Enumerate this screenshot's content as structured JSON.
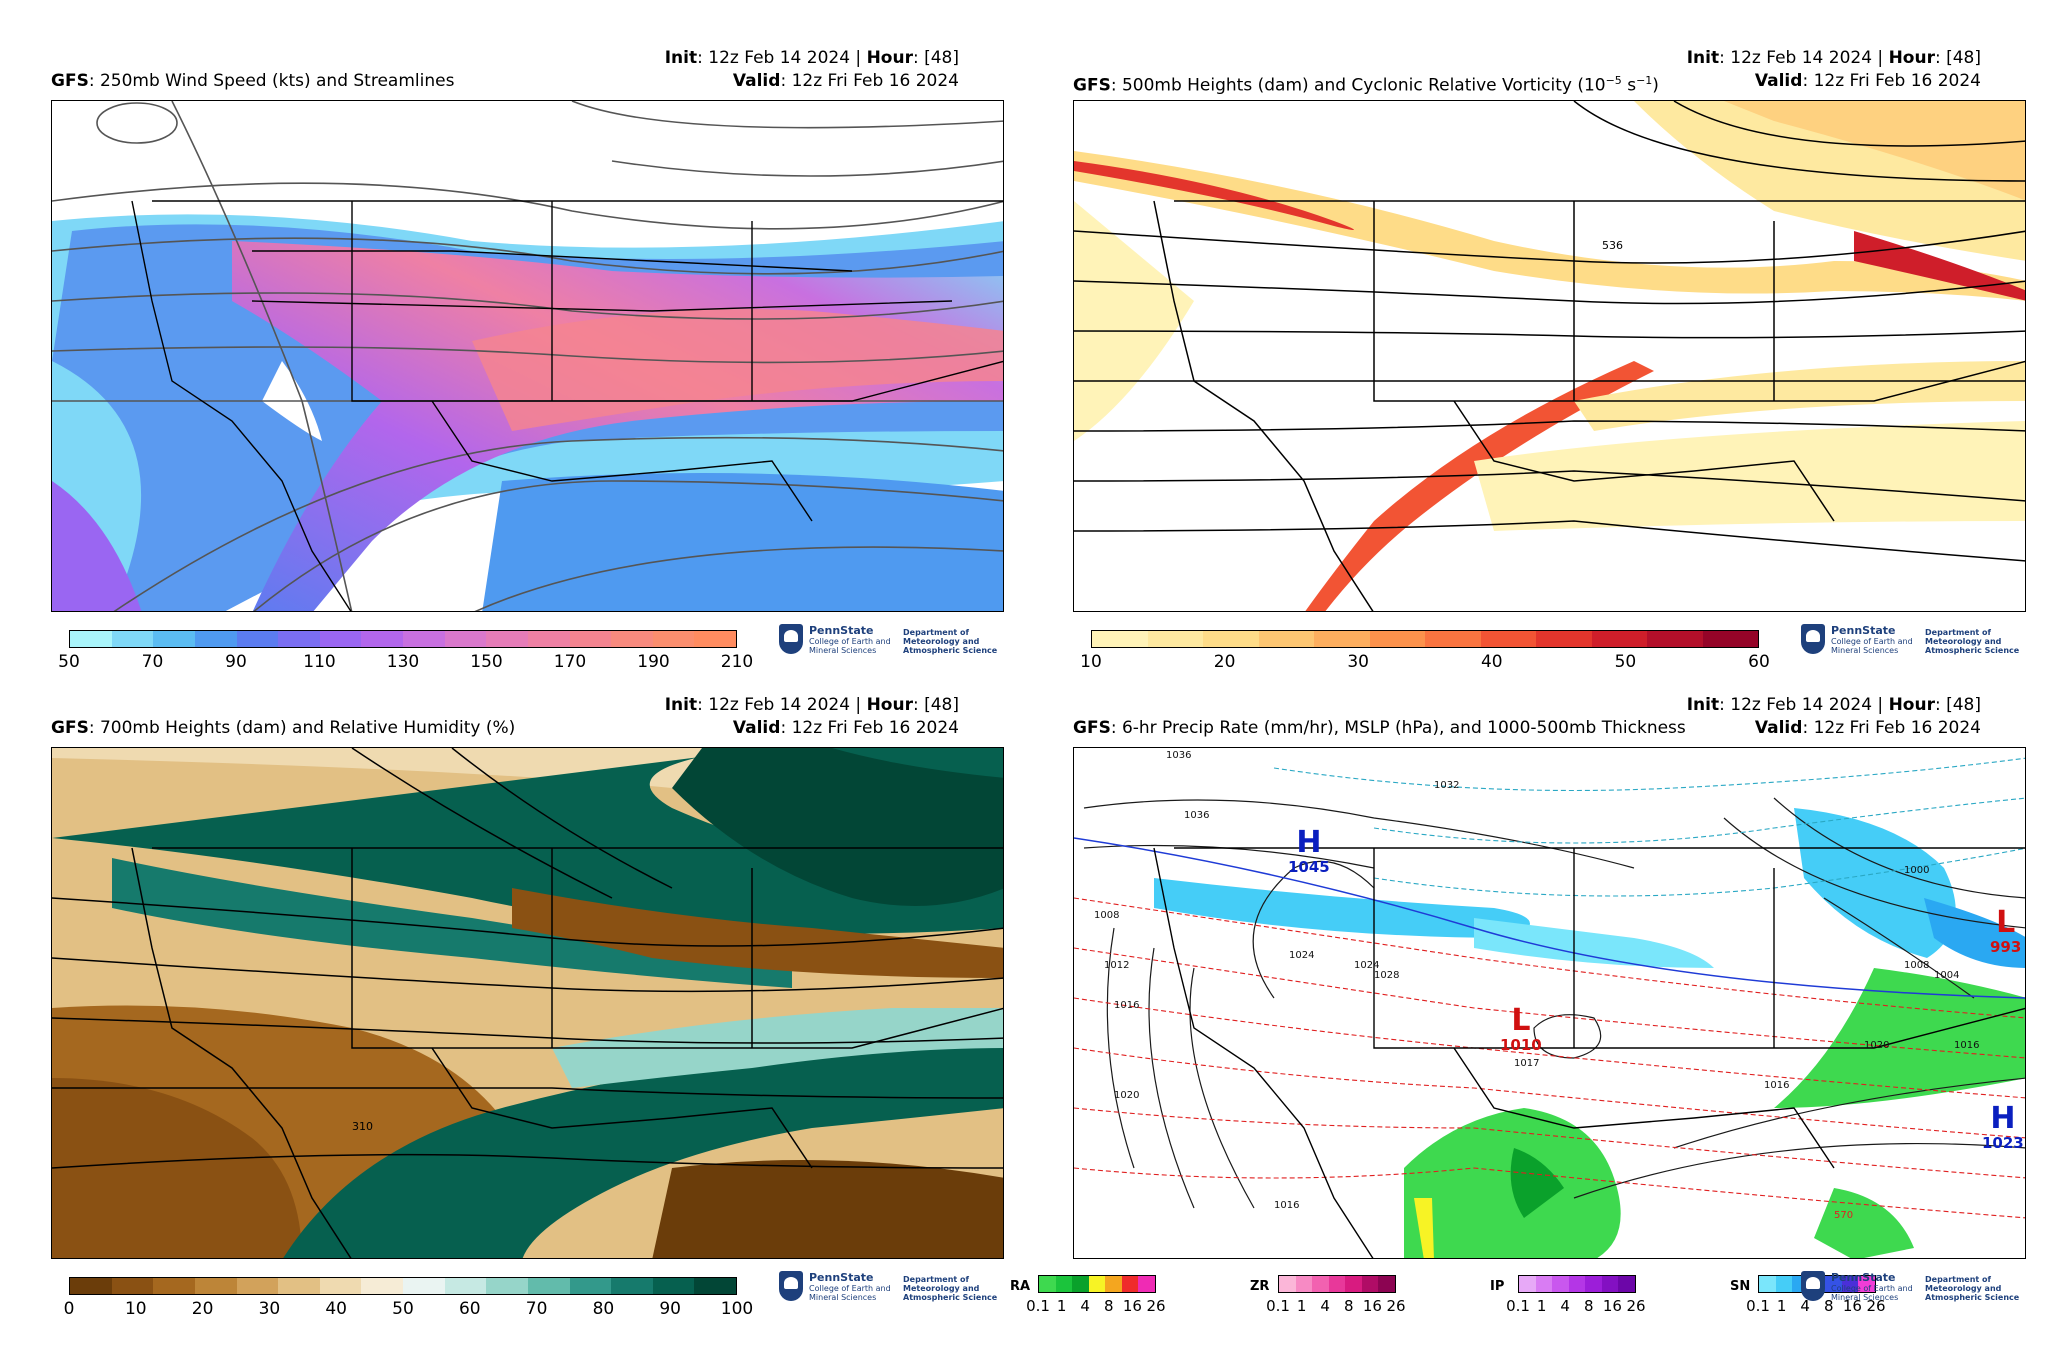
{
  "panels": [
    {
      "model": "GFS",
      "title_rest": ": 250mb Wind Speed (kts) and Streamlines",
      "init_label": "Init",
      "init_value": ": 12z Feb 14 2024 | ",
      "hour_label": "Hour",
      "hour_value": ": [48]",
      "valid_label": "Valid",
      "valid_value": ": 12z Fri Feb 16 2024",
      "colorbar_ticks": [
        "50",
        "70",
        "90",
        "110",
        "130",
        "150",
        "170",
        "190",
        "210"
      ],
      "colorbar_colors": [
        "#a9f5fb",
        "#7fd8f7",
        "#5bbcf2",
        "#4f9af0",
        "#5b7cf0",
        "#7a6ef2",
        "#9a66f2",
        "#b266ec",
        "#c870e0",
        "#da78cc",
        "#e67cb8",
        "#ef80a4",
        "#f48490",
        "#f88a7e",
        "#fb8e6e",
        "#ff8c60"
      ]
    },
    {
      "model": "GFS",
      "title_rest": ": 500mb Heights (dam) and Cyclonic Relative Vorticity (10",
      "title_sup": "−5",
      "title_unit": " s",
      "title_sup2": "−1",
      "title_close": ")",
      "init_label": "Init",
      "init_value": ": 12z Feb 14 2024 | ",
      "hour_label": "Hour",
      "hour_value": ": [48]",
      "valid_label": "Valid",
      "valid_value": ": 12z Fri Feb 16 2024",
      "contour_label": "536",
      "colorbar_ticks": [
        "10",
        "20",
        "30",
        "40",
        "50",
        "60"
      ],
      "colorbar_colors": [
        "#fff3b8",
        "#fee9a0",
        "#fedc88",
        "#fdc672",
        "#fdae5e",
        "#fc924c",
        "#fa7440",
        "#f25434",
        "#e3352c",
        "#cf1e2a",
        "#b30f2a",
        "#950428"
      ]
    },
    {
      "model": "GFS",
      "title_rest": ": 700mb Heights (dam) and Relative Humidity (%)",
      "init_label": "Init",
      "init_value": ": 12z Feb 14 2024 | ",
      "hour_label": "Hour",
      "hour_value": ": [48]",
      "valid_label": "Valid",
      "valid_value": ": 12z Fri Feb 16 2024",
      "contour_label": "310",
      "colorbar_ticks": [
        "0",
        "10",
        "20",
        "30",
        "40",
        "50",
        "60",
        "70",
        "80",
        "90",
        "100"
      ],
      "colorbar_colors": [
        "#6b3d0a",
        "#8a5113",
        "#a5681f",
        "#bd8538",
        "#d2a25b",
        "#e2c084",
        "#efdab0",
        "#f6ecd6",
        "#eaf4f2",
        "#c6e9e3",
        "#96d5c9",
        "#62bbab",
        "#33998b",
        "#167a6c",
        "#06604f",
        "#024636"
      ]
    },
    {
      "model": "GFS",
      "title_rest": ": 6-hr Precip Rate (mm/hr), MSLP (hPa), and 1000-500mb Thickness",
      "init_label": "Init",
      "init_value": ": 12z Feb 14 2024 | ",
      "hour_label": "Hour",
      "hour_value": ": [48]",
      "valid_label": "Valid",
      "valid_value": ": 12z Fri Feb 16 2024",
      "pressure_centers": [
        {
          "type": "H",
          "value": "1045",
          "color": "#0a1fbf"
        },
        {
          "type": "L",
          "value": "1010",
          "color": "#d01010"
        },
        {
          "type": "L",
          "value": "993",
          "color": "#d01010"
        },
        {
          "type": "H",
          "value": "1023",
          "color": "#0a1fbf"
        }
      ],
      "isobar_labels": [
        "1036",
        "1032",
        "1036",
        "1024",
        "1024",
        "1028",
        "1008",
        "1012",
        "1016",
        "1020",
        "1016",
        "1017",
        "1020",
        "1016",
        "1008",
        "1004",
        "1000",
        "1016",
        "570"
      ],
      "precip_legend": [
        {
          "label": "RA",
          "colors": [
            "#3ed94f",
            "#1bc43c",
            "#0aa12b",
            "#f7f325",
            "#f4a61f",
            "#ef2b2b",
            "#ef2bb4"
          ]
        },
        {
          "label": "ZR",
          "colors": [
            "#fbb6d8",
            "#f78ac4",
            "#f261b0",
            "#e8389a",
            "#d81b80",
            "#b00c66",
            "#8c0452"
          ]
        },
        {
          "label": "IP",
          "colors": [
            "#e7a9f7",
            "#d97cf3",
            "#c957ee",
            "#b436e6",
            "#9c1ed9",
            "#8310c2",
            "#6c06a8"
          ]
        },
        {
          "label": "SN",
          "colors": [
            "#7ae6fb",
            "#45cdf7",
            "#2aa8f2",
            "#2a7ef0",
            "#3552e5",
            "#4a2fd8",
            "#f03dd7"
          ]
        }
      ],
      "precip_ticks": [
        "0.1",
        "1",
        "4",
        "8",
        "16",
        "26"
      ]
    }
  ],
  "logo": {
    "name": "PennState",
    "college": "College of Earth and Mineral Sciences",
    "dept": "Department of Meteorology and Atmospheric Science"
  }
}
